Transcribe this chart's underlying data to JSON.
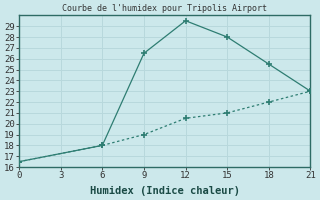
{
  "title": "Courbe de l'humidex pour Tripolis Airport",
  "xlabel": "Humidex (Indice chaleur)",
  "bg_color": "#cce8eb",
  "line_color": "#2e7d72",
  "grid_color": "#b8d8dc",
  "x_upper": [
    0,
    6,
    9,
    12,
    15,
    18,
    21
  ],
  "y_upper": [
    16.5,
    18,
    26.5,
    29.5,
    28,
    25.5,
    23
  ],
  "x_lower": [
    0,
    6,
    9,
    12,
    15,
    18,
    21
  ],
  "y_lower": [
    16.5,
    18,
    19,
    20.5,
    21,
    22,
    23
  ],
  "xlim": [
    0,
    21
  ],
  "ylim": [
    16,
    30
  ],
  "yticks": [
    16,
    17,
    18,
    19,
    20,
    21,
    22,
    23,
    24,
    25,
    26,
    27,
    28,
    29
  ],
  "xgrid_ticks": [
    0,
    3,
    6,
    9,
    12,
    15,
    18,
    21
  ]
}
